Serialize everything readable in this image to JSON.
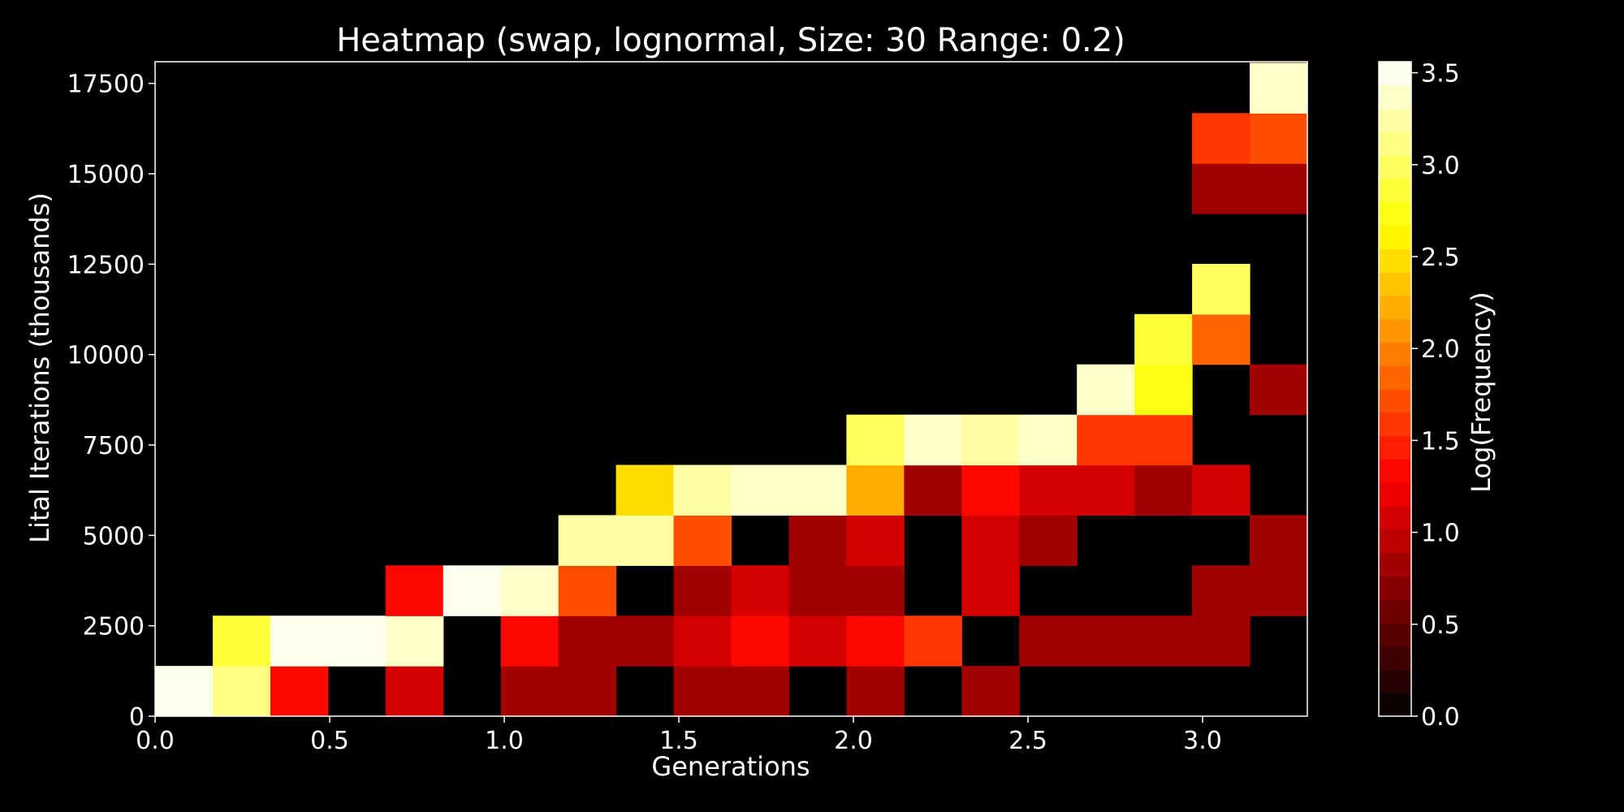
{
  "chart_data": {
    "type": "heatmap",
    "title": "Heatmap (swap, lognormal, Size: 30 Range: 0.2)",
    "xlabel": "Generations",
    "ylabel": "Lital Iterations (thousands)",
    "xlim": [
      0.0,
      3.3
    ],
    "ylim": [
      0,
      18100
    ],
    "x_ticks": [
      0.0,
      0.5,
      1.0,
      1.5,
      2.0,
      2.5,
      3.0
    ],
    "x_tick_labels": [
      "0.0",
      "0.5",
      "1.0",
      "1.5",
      "2.0",
      "2.5",
      "3.0"
    ],
    "y_ticks": [
      0,
      2500,
      5000,
      7500,
      10000,
      12500,
      15000,
      17500
    ],
    "y_tick_labels": [
      "0",
      "2500",
      "5000",
      "7500",
      "10000",
      "12500",
      "15000",
      "17500"
    ],
    "x_bin_edges": [
      0.0,
      0.165,
      0.33,
      0.495,
      0.66,
      0.825,
      0.99,
      1.155,
      1.32,
      1.485,
      1.65,
      1.815,
      1.98,
      2.145,
      2.31,
      2.475,
      2.64,
      2.805,
      2.97,
      3.135,
      3.3
    ],
    "y_bin_edges": [
      0,
      1390,
      2780,
      4170,
      5560,
      6950,
      8340,
      9730,
      11120,
      12510,
      13900,
      15290,
      16680,
      18070
    ],
    "colorbar": {
      "label": "Log(Frequency)",
      "colormap": "hot",
      "vmin": 0.0,
      "vmax": 3.56,
      "ticks": [
        0.0,
        0.5,
        1.0,
        1.5,
        2.0,
        2.5,
        3.0,
        3.5
      ],
      "tick_labels": [
        "0.0",
        "0.5",
        "1.0",
        "1.5",
        "2.0",
        "2.5",
        "3.0",
        "3.5"
      ],
      "levels": 28
    },
    "cells": [
      [
        3.56,
        3.1,
        1.3,
        null,
        1.1,
        null,
        0.8,
        0.8,
        null,
        0.8,
        0.8,
        null,
        0.8,
        null,
        0.8,
        null,
        null,
        null,
        null,
        null
      ],
      [
        null,
        2.8,
        3.56,
        3.56,
        3.4,
        null,
        1.3,
        0.8,
        0.8,
        1.1,
        1.3,
        1.1,
        1.3,
        1.6,
        null,
        0.8,
        0.8,
        0.8,
        0.8,
        null
      ],
      [
        null,
        null,
        null,
        null,
        1.3,
        3.56,
        3.4,
        1.7,
        null,
        0.8,
        1.1,
        0.8,
        0.8,
        null,
        1.1,
        null,
        null,
        null,
        0.8,
        0.8
      ],
      [
        null,
        null,
        null,
        null,
        null,
        null,
        null,
        3.3,
        3.2,
        1.7,
        null,
        0.8,
        1.1,
        null,
        1.1,
        0.8,
        null,
        null,
        null,
        0.8
      ],
      [
        null,
        null,
        null,
        null,
        null,
        null,
        null,
        null,
        2.5,
        3.2,
        3.4,
        3.4,
        2.2,
        0.8,
        1.3,
        1.1,
        1.1,
        0.8,
        1.1,
        null
      ],
      [
        null,
        null,
        null,
        null,
        null,
        null,
        null,
        null,
        null,
        null,
        null,
        null,
        3.0,
        3.4,
        3.3,
        3.4,
        1.6,
        1.6,
        null,
        null
      ],
      [
        null,
        null,
        null,
        null,
        null,
        null,
        null,
        null,
        null,
        null,
        null,
        null,
        null,
        null,
        null,
        null,
        3.4,
        2.7,
        null,
        0.8
      ],
      [
        null,
        null,
        null,
        null,
        null,
        null,
        null,
        null,
        null,
        null,
        null,
        null,
        null,
        null,
        null,
        null,
        null,
        2.8,
        1.9,
        null
      ],
      [
        null,
        null,
        null,
        null,
        null,
        null,
        null,
        null,
        null,
        null,
        null,
        null,
        null,
        null,
        null,
        null,
        null,
        null,
        3.0,
        null
      ],
      [
        null,
        null,
        null,
        null,
        null,
        null,
        null,
        null,
        null,
        null,
        null,
        null,
        null,
        null,
        null,
        null,
        null,
        null,
        null,
        null
      ],
      [
        null,
        null,
        null,
        null,
        null,
        null,
        null,
        null,
        null,
        null,
        null,
        null,
        null,
        null,
        null,
        null,
        null,
        null,
        0.8,
        0.8
      ],
      [
        null,
        null,
        null,
        null,
        null,
        null,
        null,
        null,
        null,
        null,
        null,
        null,
        null,
        null,
        null,
        null,
        null,
        null,
        1.6,
        1.7
      ],
      [
        null,
        null,
        null,
        null,
        null,
        null,
        null,
        null,
        null,
        null,
        null,
        null,
        null,
        null,
        null,
        null,
        null,
        null,
        null,
        3.4
      ]
    ]
  }
}
